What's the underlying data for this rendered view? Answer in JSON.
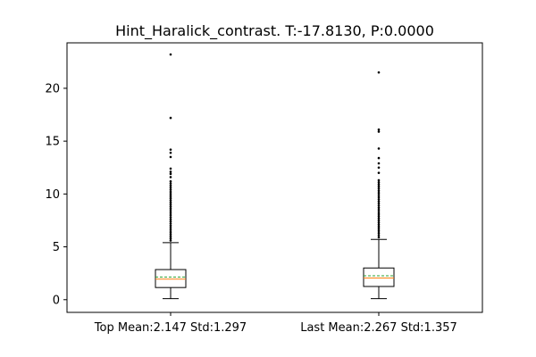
{
  "chart_data": {
    "type": "box",
    "title": "Hint_Haralick_contrast. T:-17.8130, P:0.0000",
    "xlabel": "",
    "ylabel": "",
    "ylim": [
      -1.2,
      24.3
    ],
    "yticks": [
      0,
      5,
      10,
      15,
      20
    ],
    "grid": false,
    "categories": [
      "Top Mean:2.147 Std:1.297",
      "Last Mean:2.267 Std:1.357"
    ],
    "boxes": [
      {
        "whisker_low": 0.1,
        "q1": 1.15,
        "median": 1.95,
        "q3": 2.85,
        "whisker_high": 5.4,
        "mean": 2.147,
        "outliers": [
          5.6,
          5.8,
          6.0,
          6.2,
          6.4,
          6.6,
          6.8,
          7.0,
          7.2,
          7.4,
          7.6,
          7.8,
          8.0,
          8.2,
          8.4,
          8.6,
          8.8,
          9.0,
          9.2,
          9.4,
          9.6,
          9.8,
          10.0,
          10.2,
          10.4,
          10.6,
          10.8,
          11.0,
          11.2,
          11.6,
          11.9,
          12.1,
          12.4,
          13.5,
          13.9,
          14.2,
          17.2,
          23.2
        ]
      },
      {
        "whisker_low": 0.1,
        "q1": 1.25,
        "median": 2.05,
        "q3": 3.0,
        "whisker_high": 5.7,
        "mean": 2.267,
        "outliers": [
          5.9,
          6.1,
          6.3,
          6.5,
          6.7,
          6.9,
          7.1,
          7.3,
          7.5,
          7.7,
          7.9,
          8.1,
          8.3,
          8.5,
          8.7,
          8.9,
          9.1,
          9.3,
          9.5,
          9.7,
          9.9,
          10.1,
          10.3,
          10.5,
          10.7,
          10.9,
          11.1,
          11.3,
          12.0,
          12.5,
          12.9,
          13.4,
          14.3,
          15.9,
          16.1,
          21.5
        ]
      }
    ],
    "colors": {
      "median": "#ff7f0e",
      "mean": "#2ca02c",
      "box": "#000000"
    }
  }
}
